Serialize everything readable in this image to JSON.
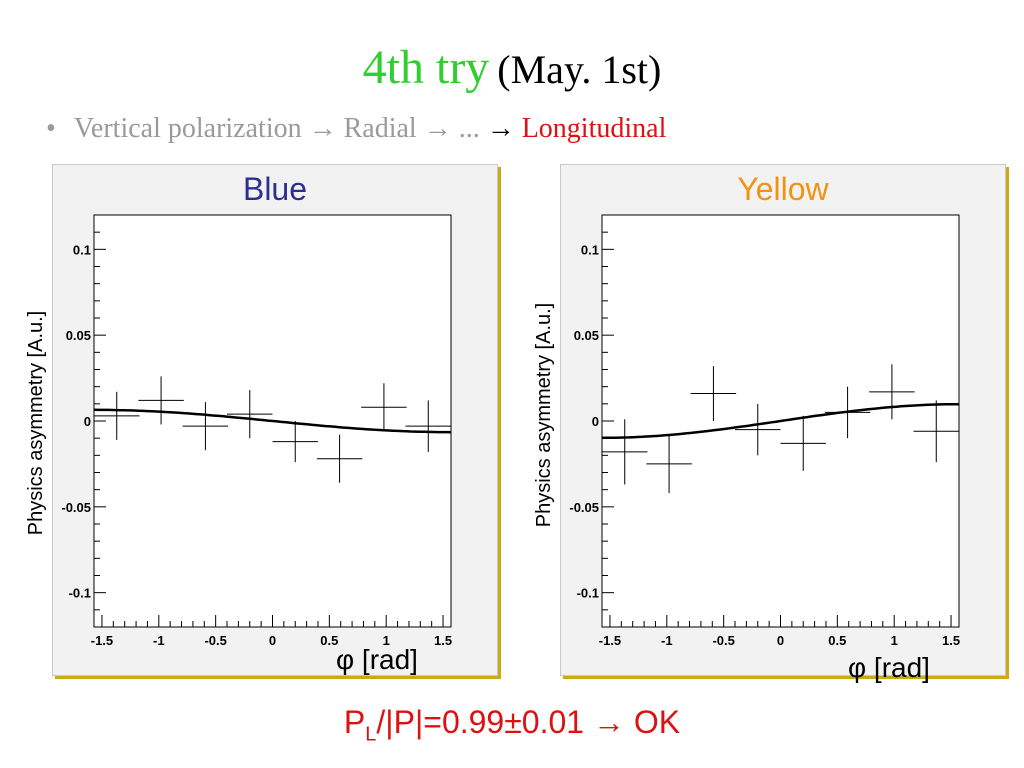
{
  "title": {
    "try": "4th try",
    "date": "(May. 1st)"
  },
  "bullet": {
    "marker": "•",
    "part1": "Vertical polarization",
    "arrow": "→",
    "part2": "Radial",
    "part3": "...",
    "part4": "Longitudinal"
  },
  "result": {
    "p": "P",
    "sub": "L",
    "rest": "/|P|=0.99±0.01",
    "arrow": "→",
    "ok": "OK"
  },
  "colors": {
    "blue_label": "#2e2e8e",
    "yellow_label": "#f39212",
    "title_green": "#2fcf2f",
    "result_red": "#dd1111",
    "frame_shadow": "#c9ab12"
  },
  "chart_data": [
    {
      "type": "scatter",
      "title": "Blue",
      "xlabel": "φ [rad]",
      "ylabel": "Physics asymmetry [A.u.]",
      "xlim": [
        -1.57,
        1.57
      ],
      "ylim": [
        -0.12,
        0.12
      ],
      "xticks": [
        -1.5,
        -1,
        -0.5,
        0,
        0.5,
        1,
        1.5
      ],
      "xtick_labels": [
        "-1.5",
        "-1",
        "-0.5",
        "0",
        "0.5",
        "1",
        "1.5"
      ],
      "yticks": [
        -0.1,
        -0.05,
        0,
        0.05,
        0.1
      ],
      "ytick_labels": [
        "-0.1",
        "-0.05",
        "0",
        "0.05",
        "0.1"
      ],
      "points": [
        {
          "x": -1.37,
          "y": 0.003,
          "xerr": 0.2,
          "yerr": 0.014
        },
        {
          "x": -0.98,
          "y": 0.012,
          "xerr": 0.2,
          "yerr": 0.014
        },
        {
          "x": -0.59,
          "y": -0.003,
          "xerr": 0.2,
          "yerr": 0.014
        },
        {
          "x": -0.2,
          "y": 0.004,
          "xerr": 0.2,
          "yerr": 0.014
        },
        {
          "x": 0.2,
          "y": -0.012,
          "xerr": 0.2,
          "yerr": 0.012
        },
        {
          "x": 0.59,
          "y": -0.022,
          "xerr": 0.2,
          "yerr": 0.014
        },
        {
          "x": 0.98,
          "y": 0.008,
          "xerr": 0.2,
          "yerr": 0.014
        },
        {
          "x": 1.37,
          "y": -0.003,
          "xerr": 0.2,
          "yerr": 0.015
        }
      ],
      "fit": {
        "type": "sin",
        "amplitude": -0.0065,
        "phase": 0.0
      }
    },
    {
      "type": "scatter",
      "title": "Yellow",
      "xlabel": "φ [rad]",
      "ylabel": "Physics asymmetry [A.u.]",
      "xlim": [
        -1.57,
        1.57
      ],
      "ylim": [
        -0.12,
        0.12
      ],
      "xticks": [
        -1.5,
        -1,
        -0.5,
        0,
        0.5,
        1,
        1.5
      ],
      "xtick_labels": [
        "-1.5",
        "-1",
        "-0.5",
        "0",
        "0.5",
        "1",
        "1.5"
      ],
      "yticks": [
        -0.1,
        -0.05,
        0,
        0.05,
        0.1
      ],
      "ytick_labels": [
        "-0.1",
        "-0.05",
        "0",
        "0.05",
        "0.1"
      ],
      "points": [
        {
          "x": -1.37,
          "y": -0.018,
          "xerr": 0.2,
          "yerr": 0.019
        },
        {
          "x": -0.98,
          "y": -0.025,
          "xerr": 0.2,
          "yerr": 0.017
        },
        {
          "x": -0.59,
          "y": 0.016,
          "xerr": 0.2,
          "yerr": 0.016
        },
        {
          "x": -0.2,
          "y": -0.005,
          "xerr": 0.2,
          "yerr": 0.015
        },
        {
          "x": 0.2,
          "y": -0.013,
          "xerr": 0.2,
          "yerr": 0.016
        },
        {
          "x": 0.59,
          "y": 0.005,
          "xerr": 0.2,
          "yerr": 0.015
        },
        {
          "x": 0.98,
          "y": 0.017,
          "xerr": 0.2,
          "yerr": 0.016
        },
        {
          "x": 1.37,
          "y": -0.006,
          "xerr": 0.2,
          "yerr": 0.018
        }
      ],
      "fit": {
        "type": "sin",
        "amplitude": 0.0098,
        "phase": 0.0
      }
    }
  ]
}
